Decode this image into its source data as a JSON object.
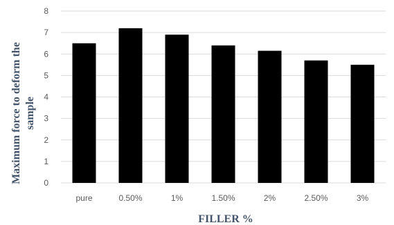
{
  "chart_data": {
    "type": "bar",
    "categories": [
      "pure",
      "0.50%",
      "1%",
      "1.50%",
      "2%",
      "2.50%",
      "3%"
    ],
    "values": [
      6.5,
      7.2,
      6.9,
      6.4,
      6.15,
      5.7,
      5.5
    ],
    "xlabel": "FILLER %",
    "ylabel_lines": [
      "Maximum force to deform the",
      "sample"
    ],
    "ylim": [
      0,
      8
    ],
    "yticks": [
      0,
      1,
      2,
      3,
      4,
      5,
      6,
      7,
      8
    ],
    "grid": true,
    "bar_color": "#000000",
    "grid_color": "#d9d9d9"
  }
}
